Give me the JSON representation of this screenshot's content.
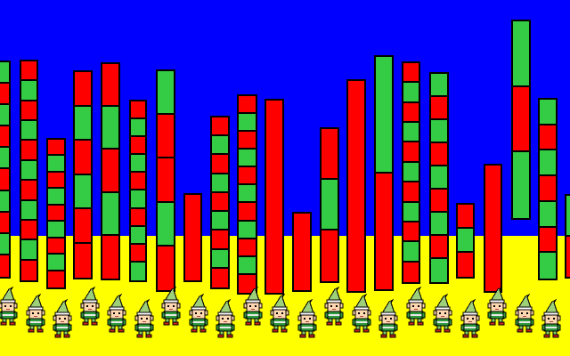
{
  "colors": {
    "sky": "#0000ff",
    "ground": "#ffff00",
    "red": "#ff0000",
    "green": "#33cc44",
    "outline": "#000000",
    "elf_hat": "#9ed07a",
    "elf_skin": "#ffd7b0",
    "elf_tunic": "#2e9c3e",
    "elf_shoes": "#cc2222"
  },
  "icons": {
    "elf": "elf-sprite-icon"
  },
  "stacks": [
    {
      "name": "stack-1",
      "segments": [
        "green",
        "red",
        "green",
        "red",
        "green",
        "red",
        "green",
        "red",
        "green",
        "red"
      ]
    },
    {
      "name": "stack-2",
      "segments": [
        "red",
        "green",
        "red",
        "green",
        "red",
        "green",
        "red",
        "green",
        "red",
        "green",
        "red"
      ]
    },
    {
      "name": "stack-3",
      "segments": [
        "red",
        "green",
        "red",
        "green",
        "red",
        "green",
        "red",
        "green",
        "red"
      ]
    },
    {
      "name": "stack-4",
      "segments": [
        "red",
        "green",
        "red",
        "green",
        "red",
        "red"
      ]
    },
    {
      "name": "stack-5",
      "segments": [
        "red",
        "green",
        "red",
        "green",
        "red"
      ]
    },
    {
      "name": "stack-6",
      "segments": [
        "red",
        "green",
        "red",
        "green",
        "red",
        "green",
        "red",
        "green",
        "red",
        "green"
      ]
    },
    {
      "name": "stack-7",
      "segments": [
        "green",
        "red",
        "red",
        "green",
        "red"
      ]
    },
    {
      "name": "stack-8",
      "segments": [
        "red"
      ]
    },
    {
      "name": "stack-9",
      "segments": [
        "red",
        "green",
        "red",
        "green",
        "red",
        "green",
        "red",
        "green",
        "red"
      ]
    },
    {
      "name": "stack-10",
      "segments": [
        "red",
        "green",
        "red",
        "green",
        "red",
        "green",
        "red",
        "green",
        "red",
        "green",
        "red"
      ]
    },
    {
      "name": "stack-11",
      "segments": [
        "red"
      ]
    },
    {
      "name": "stack-12",
      "segments": [
        "red"
      ]
    },
    {
      "name": "stack-13",
      "segments": [
        "red",
        "green",
        "red"
      ]
    },
    {
      "name": "stack-14",
      "segments": [
        "red"
      ]
    },
    {
      "name": "stack-15",
      "segments": [
        "green",
        "red"
      ]
    },
    {
      "name": "stack-16",
      "segments": [
        "red",
        "green",
        "red",
        "green",
        "red",
        "green",
        "red",
        "green",
        "red",
        "green",
        "red"
      ]
    },
    {
      "name": "stack-17",
      "segments": [
        "green",
        "red",
        "green",
        "red",
        "green",
        "red",
        "green",
        "red",
        "green"
      ]
    },
    {
      "name": "stack-18",
      "segments": [
        "red",
        "green",
        "red"
      ]
    },
    {
      "name": "stack-19",
      "segments": [
        "red"
      ]
    },
    {
      "name": "stack-20",
      "segments": [
        "green",
        "red",
        "green"
      ]
    },
    {
      "name": "stack-21",
      "segments": [
        "green",
        "red",
        "green",
        "red",
        "green",
        "red",
        "green"
      ]
    },
    {
      "name": "stack-22",
      "segments": [
        "green",
        "red"
      ]
    }
  ],
  "elves": {
    "count": 21
  }
}
